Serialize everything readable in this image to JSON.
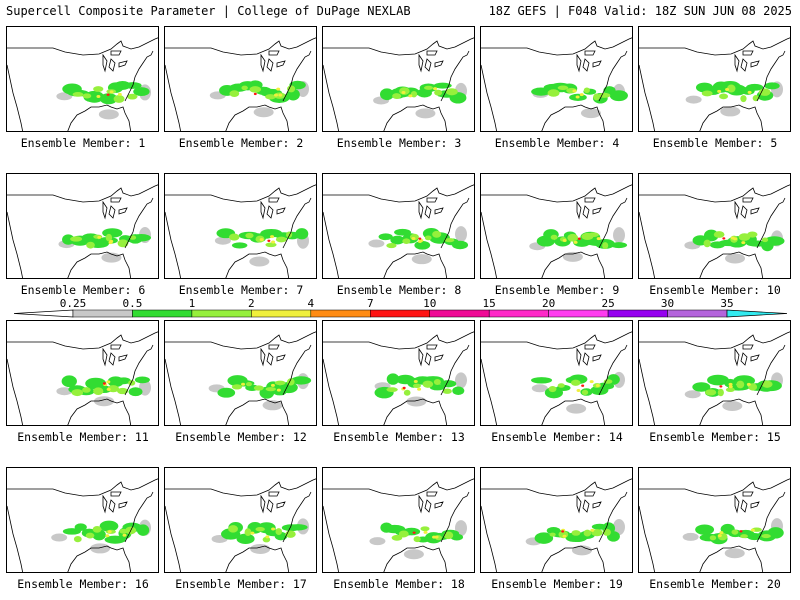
{
  "header": {
    "title": "Supercell Composite Parameter | College of DuPage NEXLAB",
    "run_info": "18Z GEFS | F048 Valid: 18Z SUN JUN 08 2025"
  },
  "members": [
    {
      "label": "Ensemble Member: 1"
    },
    {
      "label": "Ensemble Member: 2"
    },
    {
      "label": "Ensemble Member: 3"
    },
    {
      "label": "Ensemble Member: 4"
    },
    {
      "label": "Ensemble Member: 5"
    },
    {
      "label": "Ensemble Member: 6"
    },
    {
      "label": "Ensemble Member: 7"
    },
    {
      "label": "Ensemble Member: 8"
    },
    {
      "label": "Ensemble Member: 9"
    },
    {
      "label": "Ensemble Member: 10"
    },
    {
      "label": "Ensemble Member: 11"
    },
    {
      "label": "Ensemble Member: 12"
    },
    {
      "label": "Ensemble Member: 13"
    },
    {
      "label": "Ensemble Member: 14"
    },
    {
      "label": "Ensemble Member: 15"
    },
    {
      "label": "Ensemble Member: 16"
    },
    {
      "label": "Ensemble Member: 17"
    },
    {
      "label": "Ensemble Member: 18"
    },
    {
      "label": "Ensemble Member: 19"
    },
    {
      "label": "Ensemble Member: 20"
    }
  ],
  "colorbar": {
    "levels": [
      "0.25",
      "0.5",
      "1",
      "2",
      "4",
      "7",
      "10",
      "15",
      "20",
      "25",
      "30",
      "35"
    ],
    "colors": [
      "#c8c8c8",
      "#32dc32",
      "#96f03c",
      "#f0f03c",
      "#ff8c14",
      "#ff1414",
      "#f00a96",
      "#ff28c8",
      "#ff3cf0",
      "#9600f0",
      "#b464dc",
      "#32ebf0"
    ]
  }
}
